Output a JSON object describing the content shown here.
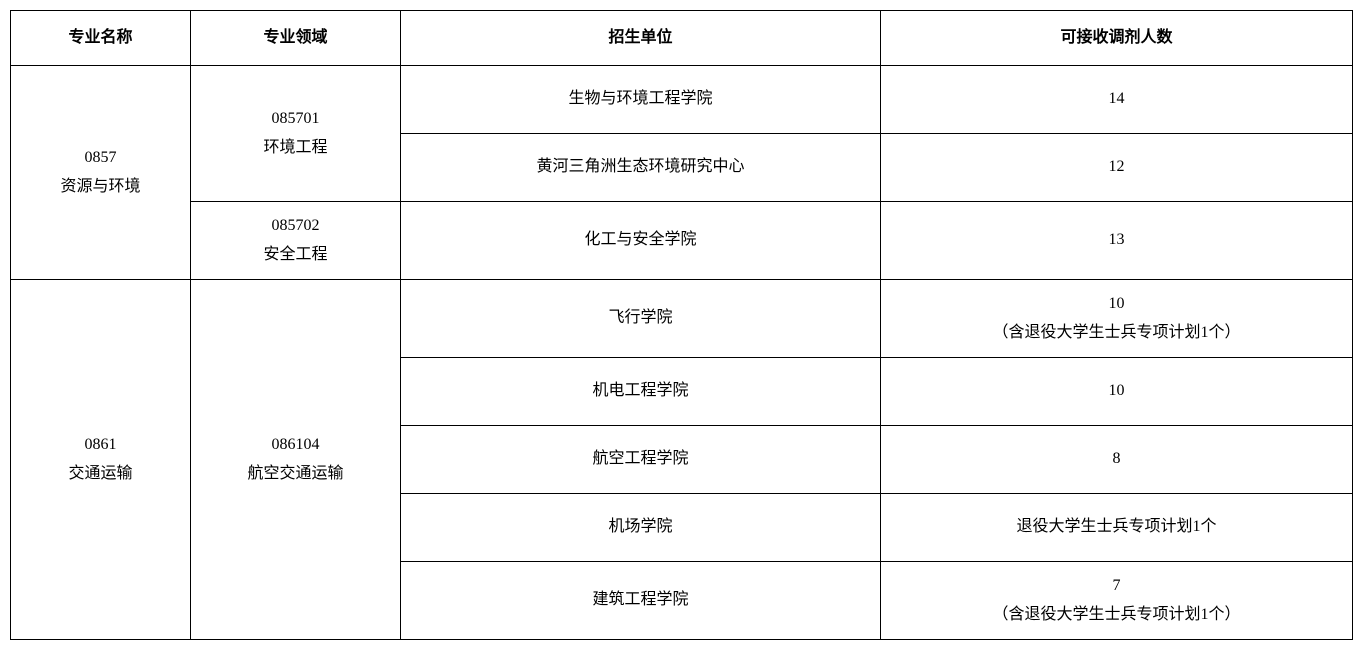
{
  "headers": {
    "c1": "专业名称",
    "c2": "专业领域",
    "c3": "招生单位",
    "c4": "可接收调剂人数"
  },
  "majors": [
    {
      "code": "0857",
      "name": "资源与环境",
      "fields": [
        {
          "code": "085701",
          "name": "环境工程",
          "units": [
            {
              "unit": "生物与环境工程学院",
              "quota": "14",
              "note": ""
            },
            {
              "unit": "黄河三角洲生态环境研究中心",
              "quota": "12",
              "note": ""
            }
          ]
        },
        {
          "code": "085702",
          "name": "安全工程",
          "units": [
            {
              "unit": "化工与安全学院",
              "quota": "13",
              "note": ""
            }
          ]
        }
      ]
    },
    {
      "code": "0861",
      "name": "交通运输",
      "fields": [
        {
          "code": "086104",
          "name": "航空交通运输",
          "units": [
            {
              "unit": "飞行学院",
              "quota": "10",
              "note": "（含退役大学生士兵专项计划1个）"
            },
            {
              "unit": "机电工程学院",
              "quota": "10",
              "note": ""
            },
            {
              "unit": "航空工程学院",
              "quota": "8",
              "note": ""
            },
            {
              "unit": "机场学院",
              "quota": "退役大学生士兵专项计划1个",
              "note": ""
            },
            {
              "unit": "建筑工程学院",
              "quota": "7",
              "note": "（含退役大学生士兵专项计划1个）"
            }
          ]
        }
      ]
    }
  ],
  "style": {
    "border_color": "#000000",
    "text_color": "#000000",
    "background": "#ffffff",
    "font_family": "SimSun",
    "header_fontsize": 16,
    "cell_fontsize": 16
  }
}
